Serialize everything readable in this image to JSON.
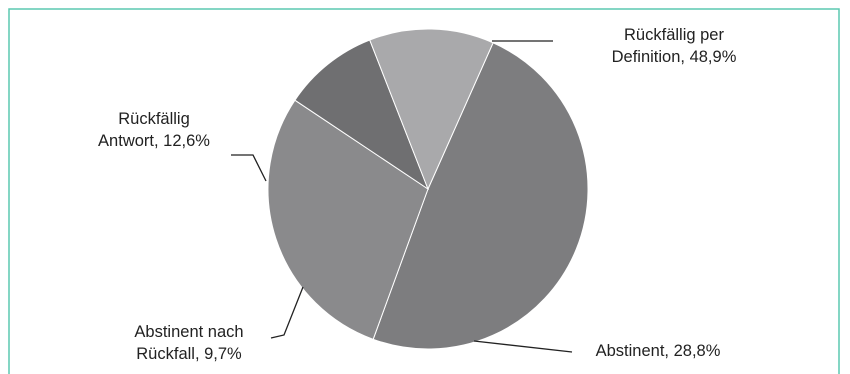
{
  "chart_data": {
    "type": "pie",
    "title": "",
    "legend": "none",
    "slices": [
      {
        "label_lines": [
          "Rückfällig per",
          "Definition, 48,9%"
        ],
        "value": 48.9,
        "color": "#7d7d7f"
      },
      {
        "label_lines": [
          "Abstinent, 28,8%"
        ],
        "value": 28.8,
        "color": "#8a8a8c"
      },
      {
        "label_lines": [
          "Abstinent nach",
          "Rückfall, 9,7%"
        ],
        "value": 9.7,
        "color": "#6f6f71"
      },
      {
        "label_lines": [
          "Rückfällig",
          "Antwort, 12,6%"
        ],
        "value": 12.6,
        "color": "#a9a9ab"
      }
    ]
  },
  "colors": {
    "frame": "#5cc9b0",
    "leader": "#222222",
    "slice_border": "#ffffff"
  }
}
